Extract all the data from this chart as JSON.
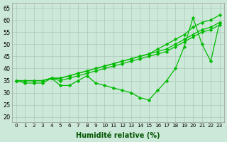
{
  "title": "",
  "xlabel": "Humidité relative (%)",
  "ylabel": "",
  "bg_color": "#cce8d8",
  "grid_color": "#aac8b8",
  "line_color": "#00bb00",
  "marker_color": "#00bb00",
  "ylim": [
    18,
    67
  ],
  "xlim": [
    -0.5,
    23.5
  ],
  "yticks": [
    20,
    25,
    30,
    35,
    40,
    45,
    50,
    55,
    60,
    65
  ],
  "xticks": [
    0,
    1,
    2,
    3,
    4,
    5,
    6,
    7,
    8,
    9,
    10,
    11,
    12,
    13,
    14,
    15,
    16,
    17,
    18,
    19,
    20,
    21,
    22,
    23
  ],
  "series": [
    [
      35,
      34,
      34,
      34,
      36,
      33,
      33,
      35,
      37,
      34,
      33,
      32,
      31,
      30,
      28,
      27,
      31,
      35,
      40,
      49,
      61,
      50,
      43,
      59
    ],
    [
      35,
      35,
      35,
      35,
      36,
      35,
      36,
      37,
      38,
      39,
      40,
      41,
      42,
      43,
      44,
      45,
      46,
      47,
      49,
      51,
      53,
      55,
      56,
      58
    ],
    [
      35,
      35,
      35,
      35,
      36,
      36,
      37,
      38,
      39,
      40,
      41,
      42,
      43,
      44,
      45,
      46,
      47,
      48,
      50,
      52,
      54,
      56,
      57,
      59
    ],
    [
      35,
      35,
      35,
      35,
      36,
      36,
      37,
      38,
      39,
      40,
      41,
      42,
      43,
      44,
      45,
      46,
      48,
      50,
      52,
      54,
      57,
      59,
      60,
      62
    ]
  ]
}
